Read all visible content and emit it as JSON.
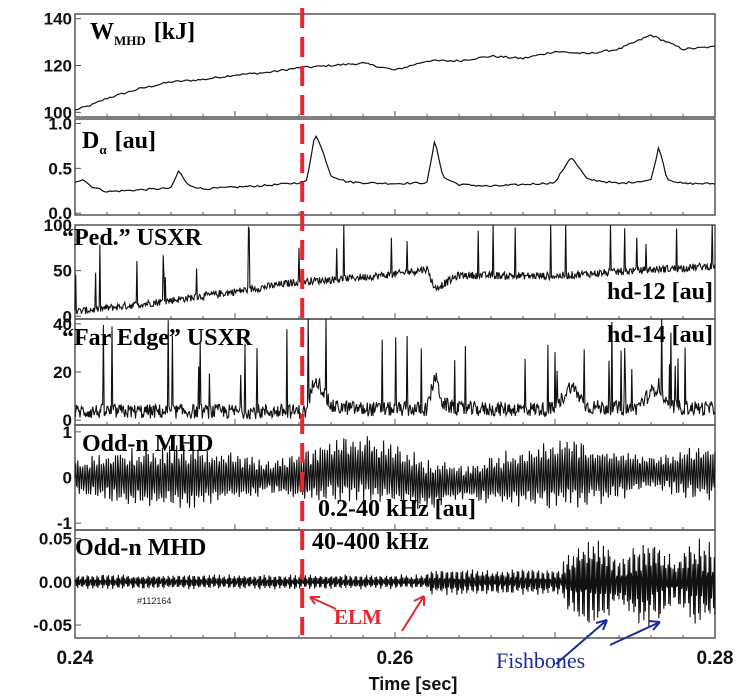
{
  "chart_data": {
    "type": "line",
    "xlabel": "Time [sec]",
    "xlim": [
      0.24,
      0.28
    ],
    "xticks": [
      "0.24",
      "0.26",
      "0.28"
    ],
    "elm_time": 0.2542,
    "colors": {
      "trace": "#111111",
      "elm": "#e8262f",
      "fishbones": "#1a2aa0",
      "frame": "#555555"
    },
    "panels": [
      {
        "title": "W",
        "title_sub": "MHD",
        "title_unit": "[kJ]",
        "ylim": [
          98,
          142
        ],
        "yticks": [
          "140",
          "120",
          "100"
        ],
        "ytick_values": [
          140,
          120,
          100
        ],
        "series": {
          "x": [
            0.24,
            0.241,
            0.242,
            0.244,
            0.246,
            0.248,
            0.25,
            0.252,
            0.254,
            0.256,
            0.258,
            0.26,
            0.262,
            0.264,
            0.266,
            0.268,
            0.27,
            0.272,
            0.274,
            0.276,
            0.278,
            0.28
          ],
          "y": [
            101,
            103,
            106,
            110,
            113,
            114,
            116,
            117,
            119,
            120,
            121,
            118,
            122,
            122,
            124,
            123,
            126,
            125,
            127,
            133,
            127,
            128
          ]
        }
      },
      {
        "title": "D",
        "title_sub": "α",
        "title_unit": "[au]",
        "ylim": [
          -0.02,
          1.05
        ],
        "yticks": [
          "1.0",
          "0.5",
          "0.0"
        ],
        "ytick_values": [
          1.0,
          0.5,
          0.0
        ],
        "series": {
          "x": [
            0.24,
            0.2405,
            0.241,
            0.242,
            0.244,
            0.246,
            0.2465,
            0.247,
            0.248,
            0.25,
            0.252,
            0.254,
            0.2545,
            0.255,
            0.2555,
            0.256,
            0.257,
            0.258,
            0.26,
            0.262,
            0.2625,
            0.263,
            0.264,
            0.266,
            0.268,
            0.27,
            0.271,
            0.272,
            0.274,
            0.276,
            0.2765,
            0.277,
            0.278,
            0.28
          ],
          "y": [
            0.35,
            0.38,
            0.3,
            0.24,
            0.26,
            0.28,
            0.48,
            0.32,
            0.27,
            0.29,
            0.31,
            0.34,
            0.36,
            0.9,
            0.68,
            0.42,
            0.35,
            0.34,
            0.33,
            0.34,
            0.82,
            0.4,
            0.32,
            0.3,
            0.32,
            0.34,
            0.63,
            0.38,
            0.33,
            0.37,
            0.75,
            0.38,
            0.33,
            0.33
          ]
        }
      },
      {
        "title": "“Ped.” USXR",
        "title_right": "hd-12 [au]",
        "ylim": [
          -3,
          100
        ],
        "yticks": [
          "100",
          "50",
          "0"
        ],
        "ytick_values": [
          100,
          50,
          0
        ],
        "noise_kind": "ped",
        "series": {
          "x": [
            0.24,
            0.245,
            0.25,
            0.254,
            0.256,
            0.26,
            0.262,
            0.2625,
            0.264,
            0.27,
            0.275,
            0.28
          ],
          "y": [
            5,
            15,
            27,
            38,
            40,
            46,
            52,
            30,
            45,
            44,
            50,
            55
          ]
        }
      },
      {
        "title": "“Far Edge” USXR",
        "title_right": "hd-14 [au]",
        "ylim": [
          -2,
          42
        ],
        "yticks": [
          "40",
          "20",
          "0"
        ],
        "ytick_values": [
          40,
          20,
          0
        ],
        "noise_kind": "far",
        "series": {
          "x": [
            0.24,
            0.254,
            0.2545,
            0.255,
            0.256,
            0.258,
            0.26,
            0.262,
            0.2625,
            0.263,
            0.264,
            0.27,
            0.271,
            0.272,
            0.275,
            0.2765,
            0.277,
            0.28
          ],
          "y": [
            3,
            3,
            3,
            18,
            5,
            4,
            4,
            4,
            18,
            6,
            4,
            4,
            14,
            5,
            4,
            14,
            5,
            4
          ]
        }
      },
      {
        "title": "Odd-n MHD",
        "title_right": "0.2-40 kHz [au]",
        "ylim": [
          -1.15,
          1.15
        ],
        "yticks": [
          "1",
          "0",
          "-1"
        ],
        "ytick_values": [
          1,
          0,
          -1
        ],
        "noise_kind": "osc1",
        "series": {
          "x": [
            0.24,
            0.245,
            0.25,
            0.254,
            0.256,
            0.258,
            0.26,
            0.262,
            0.265,
            0.27,
            0.275,
            0.28
          ],
          "y": [
            0,
            0,
            0,
            0,
            0.15,
            0.2,
            0.05,
            -0.15,
            -0.1,
            0.05,
            0.1,
            0.1
          ]
        }
      },
      {
        "title": "Odd-n MHD",
        "title_right": "40-400 kHz",
        "ylim": [
          -0.065,
          0.06
        ],
        "yticks": [
          "0.05",
          "0.00",
          "-0.05"
        ],
        "ytick_values": [
          0.05,
          0.0,
          -0.05
        ],
        "noise_kind": "osc2",
        "shot_label": "#112164",
        "series": {
          "x": [
            0.24,
            0.28
          ],
          "y": [
            0,
            0
          ]
        }
      }
    ],
    "annotations": {
      "elm_label": "ELM",
      "fishbones_label": "Fishbones"
    }
  }
}
